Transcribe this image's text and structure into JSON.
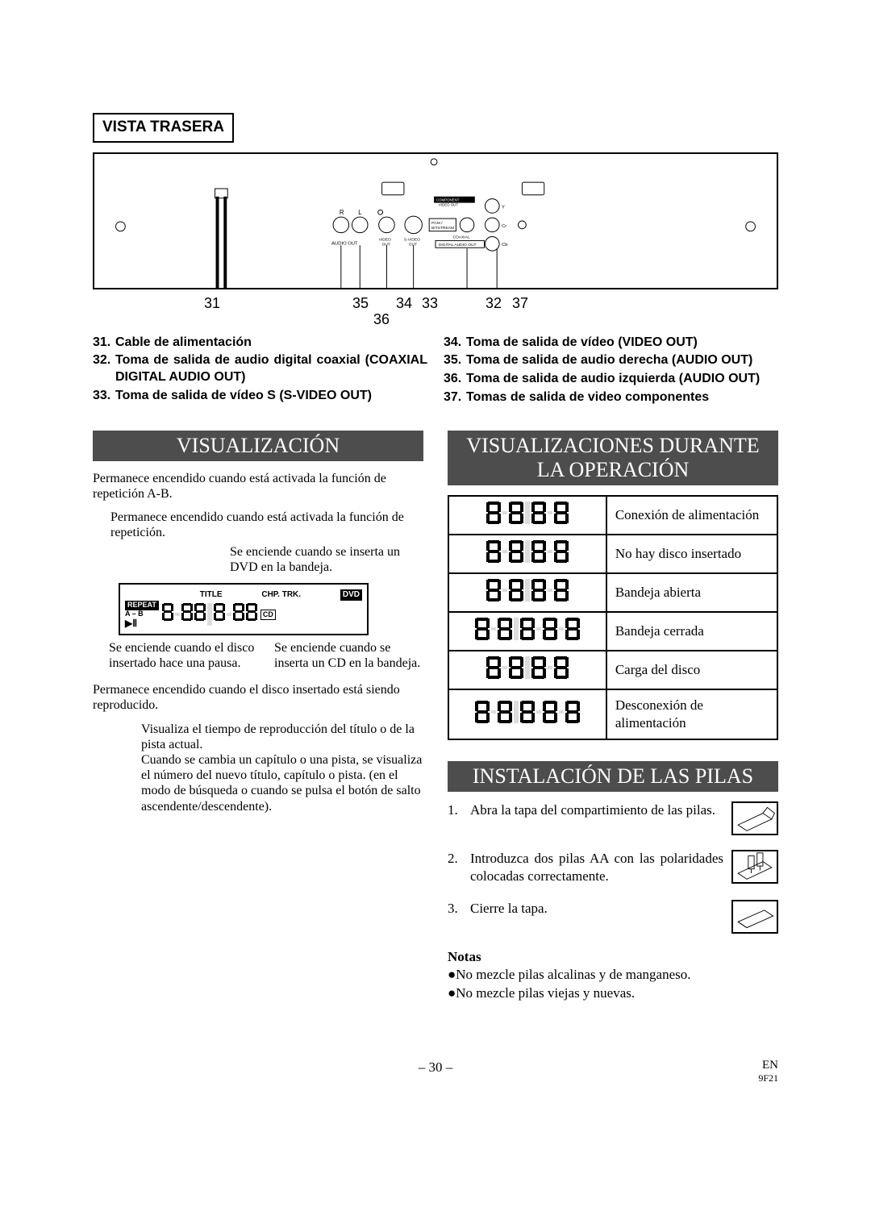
{
  "vista_trasera": {
    "title": "VISTA TRASERA",
    "diagram_labels": {
      "audio_out": "AUDIO OUT",
      "r": "R",
      "l": "L",
      "video_out": "VIDEO OUT",
      "s_video_out": "S-VIDEO OUT",
      "component_video_out": "COMPONENT VIDEO OUT",
      "pcm": "PCM / BITSTREAM",
      "coaxial": "COAXIAL",
      "digital_audio_out": "DIGITAL AUDIO OUT",
      "y": "Y",
      "cr": "Cr",
      "cb": "Cb"
    },
    "callouts": [
      "31",
      "35",
      "34",
      "33",
      "32",
      "37",
      "36"
    ],
    "left_list": [
      {
        "n": "31.",
        "t": "Cable de alimentación"
      },
      {
        "n": "32.",
        "t": "Toma de salida de audio digital coaxial (COAXIAL DIGITAL AUDIO OUT)"
      },
      {
        "n": "33.",
        "t": "Toma de salida de vídeo S (S-VIDEO OUT)"
      }
    ],
    "right_list": [
      {
        "n": "34.",
        "t": "Toma de salida de vídeo (VIDEO OUT)"
      },
      {
        "n": "35.",
        "t": "Toma de salida de audio derecha (AUDIO OUT)"
      },
      {
        "n": "36.",
        "t": "Toma de salida de audio izquierda (AUDIO OUT)"
      },
      {
        "n": "37.",
        "t": "Tomas de salida de video componentes"
      }
    ]
  },
  "visualizacion": {
    "title": "VISUALIZACIÓN",
    "annots": {
      "ab": "Permanece encendido cuando está activada la función de repetición A-B.",
      "repeat": "Permanece encendido cuando está activada la función de repetición.",
      "dvd": "Se enciende cuando se inserta un DVD en la bandeja.",
      "pause": "Se enciende cuando el disco insertado hace una pausa.",
      "cd": "Se enciende cuando se inserta un CD en la bandeja.",
      "play": "Permanece encendido cuando el disco insertado está siendo reproducido.",
      "time": "Visualiza el tiempo de reproducción del título o de la pista actual.\nCuando se cambia un capítulo o una pista, se visualiza el número del nuevo título, capítulo o pista. (en el modo de búsqueda o cuando se pulsa el botón de salto ascendente/descendente)."
    },
    "box_labels": {
      "title": "TITLE",
      "chp_trk": "CHP.  TRK.",
      "dvd": "DVD",
      "cd": "CD",
      "repeat": "REPEAT",
      "ab": "A – B"
    }
  },
  "durante": {
    "title": "VISUALIZACIONES DURANTE LA OPERACIÓN",
    "rows": [
      {
        "seg": "P-ON",
        "desc": "Conexión de alimentación"
      },
      {
        "seg": "BLANK",
        "desc": "No hay disco insertado"
      },
      {
        "seg": "OPEN",
        "desc": "Bandeja abierta"
      },
      {
        "seg": "CLOSE",
        "desc": "Bandeja cerrada"
      },
      {
        "seg": "LOAD",
        "desc": "Carga del disco"
      },
      {
        "seg": "P-OFF",
        "desc": "Desconexión de alimentación"
      }
    ]
  },
  "pilas": {
    "title": "INSTALACIÓN DE LAS PILAS",
    "steps": [
      {
        "n": "1.",
        "t": "Abra la tapa del compartimiento de las pilas."
      },
      {
        "n": "2.",
        "t": "Introduzca dos pilas AA con las polaridades colocadas correctamente."
      },
      {
        "n": "3.",
        "t": "Cierre la tapa."
      }
    ],
    "notas_h": "Notas",
    "notas": [
      "●No mezcle pilas alcalinas y de manganeso.",
      "●No mezcle pilas viejas y nuevas."
    ]
  },
  "footer": {
    "page": "– 30 –",
    "lang": "EN",
    "code": "9F21"
  },
  "colors": {
    "band_bg": "#4d4d4d",
    "band_fg": "#ffffff",
    "line": "#000000",
    "seg_on": "#000000",
    "seg_off": "#dddddd"
  }
}
